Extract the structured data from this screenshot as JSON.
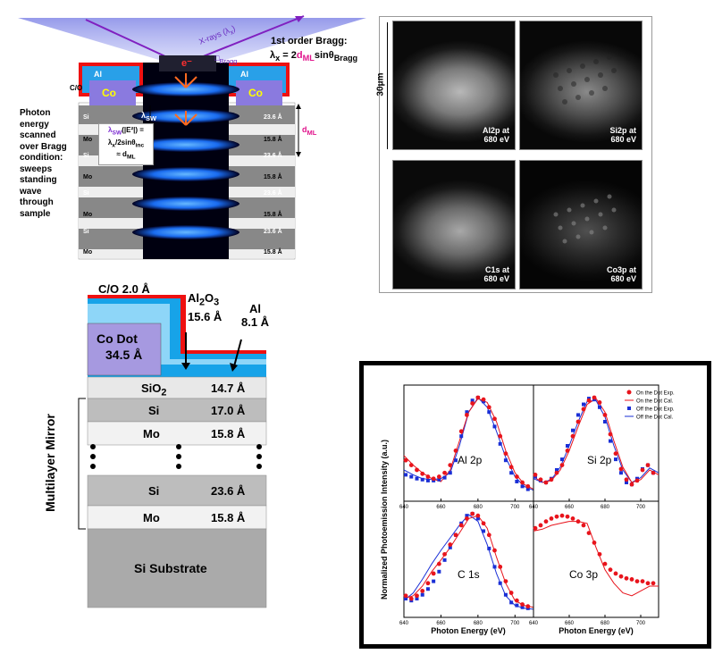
{
  "panel_a": {
    "xray_label": "X-rays (λ",
    "xray_label_sub": "x",
    "xray_label_close": ")",
    "theta_label": "Bragg",
    "bragg_title": "1st order Bragg:",
    "bragg_eq_lhs": "λ",
    "bragg_eq_lhs_sub": "x",
    "bragg_eq_mid": " = 2",
    "bragg_eq_d": "d",
    "bragg_eq_d_sub": "ML",
    "bragg_eq_rhs": "sinθ",
    "bragg_eq_rhs_sub": "Bragg",
    "co_left": "Co",
    "co_right": "Co",
    "al_left": "Al",
    "al_right": "Al",
    "co_label": "C/O",
    "e_label": "e⁻",
    "lambda_sw": "λ",
    "lambda_sw_sub": "SW",
    "left_text": "Photon energy scanned over Bragg condition: sweeps standing wave through sample",
    "box_line1": "λ",
    "box_line1_sub": "SW",
    "box_line1_rest": "(|E²|) =",
    "box_line2": "λ",
    "box_line2_sub": "x",
    "box_line2_rest": "/2sinθ",
    "box_line2_sub2": "inc",
    "box_line3": "≈ d",
    "box_line3_sub": "ML",
    "d_ml": "d",
    "d_ml_sub": "ML",
    "layers": [
      {
        "name": "Si",
        "thick": "23.6 Å"
      },
      {
        "name": "Mo",
        "thick": "15.8 Å"
      },
      {
        "name": "Si",
        "thick": "23.6 Å"
      },
      {
        "name": "Mo",
        "thick": "15.8 Å"
      },
      {
        "name": "Si",
        "thick": "23.6 Å"
      },
      {
        "name": "Mo",
        "thick": "15.8 Å"
      },
      {
        "name": "Si",
        "thick": "23.6 Å"
      },
      {
        "name": "Mo",
        "thick": "15.8 Å"
      }
    ]
  },
  "panel_b": {
    "scale": "30μm",
    "images": [
      {
        "line1": "Al2p at",
        "line2": "680 eV"
      },
      {
        "line1": "Si2p at",
        "line2": "680 eV"
      },
      {
        "line1": "C1s at",
        "line2": "680 eV"
      },
      {
        "line1": "Co3p at",
        "line2": "680 eV"
      }
    ]
  },
  "panel_c": {
    "co_label": "C/O  2.0 Å",
    "al2o3_label": "Al",
    "al2o3_sub1": "2",
    "al2o3_mid": "O",
    "al2o3_sub2": "3",
    "al2o3_thick": "15.6 Å",
    "al_label": "Al",
    "al_thick": "8.1 Å",
    "co_dot": "Co Dot",
    "co_dot_thick": "34.5 Å",
    "mirror_label": "Multilayer Mirror",
    "substrate": "Si Substrate",
    "rows": [
      {
        "name": "SiO",
        "sub": "2",
        "thick": "14.7 Å"
      },
      {
        "name": "Si",
        "sub": "",
        "thick": "17.0 Å"
      },
      {
        "name": "Mo",
        "sub": "",
        "thick": "15.8 Å"
      },
      {
        "name": "Si",
        "sub": "",
        "thick": "23.6 Å"
      },
      {
        "name": "Mo",
        "sub": "",
        "thick": "15.8 Å"
      }
    ]
  },
  "chart_data": {
    "type": "scatter",
    "ylabel": "Normalized Photoemission Intensity (a.u.)",
    "xlabel": "Photon Energy (eV)",
    "xlim": [
      640,
      710
    ],
    "xticks": [
      640,
      660,
      680,
      700
    ],
    "legend": [
      "On the Dot Exp.",
      "On the Dot Cal.",
      "Off the Dot Exp.",
      "Off the Dot Cal."
    ],
    "legend_position": "top-right of Si 2p panel",
    "colors": {
      "on": "#e8141c",
      "off": "#1a2fd6"
    },
    "panels": [
      {
        "name": "Al 2p",
        "on_exp": [
          [
            641,
            0.35
          ],
          [
            644,
            0.3
          ],
          [
            647,
            0.25
          ],
          [
            650,
            0.21
          ],
          [
            653,
            0.18
          ],
          [
            656,
            0.16
          ],
          [
            659,
            0.18
          ],
          [
            662,
            0.22
          ],
          [
            665,
            0.3
          ],
          [
            668,
            0.45
          ],
          [
            671,
            0.65
          ],
          [
            674,
            0.82
          ],
          [
            677,
            0.94
          ],
          [
            680,
            1.0
          ],
          [
            683,
            0.98
          ],
          [
            686,
            0.9
          ],
          [
            689,
            0.78
          ],
          [
            692,
            0.6
          ],
          [
            695,
            0.42
          ],
          [
            698,
            0.28
          ],
          [
            701,
            0.18
          ],
          [
            704,
            0.12
          ],
          [
            707,
            0.08
          ]
        ],
        "on_cal": [
          [
            640,
            0.4
          ],
          [
            645,
            0.3
          ],
          [
            650,
            0.22
          ],
          [
            655,
            0.16
          ],
          [
            660,
            0.13
          ],
          [
            665,
            0.25
          ],
          [
            670,
            0.55
          ],
          [
            675,
            0.85
          ],
          [
            680,
            0.99
          ],
          [
            685,
            0.95
          ],
          [
            690,
            0.75
          ],
          [
            695,
            0.45
          ],
          [
            700,
            0.22
          ],
          [
            705,
            0.1
          ],
          [
            710,
            0.05
          ]
        ],
        "off_exp": [
          [
            641,
            0.2
          ],
          [
            644,
            0.18
          ],
          [
            647,
            0.16
          ],
          [
            650,
            0.15
          ],
          [
            653,
            0.14
          ],
          [
            656,
            0.14
          ],
          [
            659,
            0.15
          ],
          [
            662,
            0.17
          ],
          [
            665,
            0.22
          ],
          [
            668,
            0.35
          ],
          [
            671,
            0.6
          ],
          [
            674,
            0.85
          ],
          [
            677,
            0.97
          ],
          [
            680,
            1.0
          ],
          [
            683,
            0.96
          ],
          [
            686,
            0.85
          ],
          [
            689,
            0.7
          ],
          [
            692,
            0.52
          ],
          [
            695,
            0.35
          ],
          [
            698,
            0.22
          ],
          [
            701,
            0.13
          ],
          [
            704,
            0.08
          ],
          [
            707,
            0.05
          ]
        ],
        "off_cal": [
          [
            640,
            0.25
          ],
          [
            645,
            0.2
          ],
          [
            650,
            0.16
          ],
          [
            655,
            0.15
          ],
          [
            660,
            0.16
          ],
          [
            665,
            0.22
          ],
          [
            670,
            0.5
          ],
          [
            675,
            0.85
          ],
          [
            680,
            1.0
          ],
          [
            685,
            0.9
          ],
          [
            690,
            0.65
          ],
          [
            695,
            0.38
          ],
          [
            700,
            0.18
          ],
          [
            705,
            0.08
          ],
          [
            710,
            0.04
          ]
        ]
      },
      {
        "name": "Si 2p",
        "on_exp": [
          [
            641,
            0.2
          ],
          [
            644,
            0.15
          ],
          [
            647,
            0.12
          ],
          [
            650,
            0.15
          ],
          [
            653,
            0.22
          ],
          [
            656,
            0.3
          ],
          [
            659,
            0.45
          ],
          [
            662,
            0.6
          ],
          [
            665,
            0.75
          ],
          [
            668,
            0.88
          ],
          [
            671,
            0.97
          ],
          [
            674,
            1.0
          ],
          [
            677,
            0.95
          ],
          [
            680,
            0.82
          ],
          [
            683,
            0.62
          ],
          [
            686,
            0.42
          ],
          [
            689,
            0.26
          ],
          [
            692,
            0.15
          ],
          [
            695,
            0.1
          ],
          [
            698,
            0.14
          ],
          [
            701,
            0.25
          ],
          [
            704,
            0.3
          ],
          [
            707,
            0.22
          ]
        ],
        "on_cal": [
          [
            640,
            0.18
          ],
          [
            645,
            0.12
          ],
          [
            650,
            0.14
          ],
          [
            655,
            0.25
          ],
          [
            660,
            0.45
          ],
          [
            665,
            0.7
          ],
          [
            670,
            0.93
          ],
          [
            675,
            0.99
          ],
          [
            680,
            0.85
          ],
          [
            685,
            0.55
          ],
          [
            690,
            0.28
          ],
          [
            695,
            0.12
          ],
          [
            700,
            0.15
          ],
          [
            705,
            0.25
          ],
          [
            710,
            0.2
          ]
        ],
        "off_exp": [
          [
            641,
            0.18
          ],
          [
            644,
            0.14
          ],
          [
            647,
            0.12
          ],
          [
            650,
            0.16
          ],
          [
            653,
            0.25
          ],
          [
            656,
            0.36
          ],
          [
            659,
            0.5
          ],
          [
            662,
            0.66
          ],
          [
            665,
            0.82
          ],
          [
            668,
            0.93
          ],
          [
            671,
            0.99
          ],
          [
            674,
            0.98
          ],
          [
            677,
            0.9
          ],
          [
            680,
            0.75
          ],
          [
            683,
            0.55
          ],
          [
            686,
            0.36
          ],
          [
            689,
            0.22
          ],
          [
            692,
            0.12
          ],
          [
            695,
            0.1
          ],
          [
            698,
            0.16
          ],
          [
            701,
            0.26
          ],
          [
            704,
            0.3
          ],
          [
            707,
            0.22
          ]
        ],
        "off_cal": [
          [
            640,
            0.16
          ],
          [
            645,
            0.12
          ],
          [
            650,
            0.15
          ],
          [
            655,
            0.28
          ],
          [
            660,
            0.5
          ],
          [
            665,
            0.75
          ],
          [
            670,
            0.96
          ],
          [
            675,
            0.97
          ],
          [
            680,
            0.8
          ],
          [
            685,
            0.5
          ],
          [
            690,
            0.25
          ],
          [
            695,
            0.12
          ],
          [
            700,
            0.17
          ],
          [
            705,
            0.27
          ],
          [
            710,
            0.22
          ]
        ]
      },
      {
        "name": "C 1s",
        "on_exp": [
          [
            641,
            0.15
          ],
          [
            644,
            0.12
          ],
          [
            647,
            0.15
          ],
          [
            650,
            0.2
          ],
          [
            653,
            0.28
          ],
          [
            656,
            0.38
          ],
          [
            659,
            0.48
          ],
          [
            662,
            0.58
          ],
          [
            665,
            0.68
          ],
          [
            668,
            0.78
          ],
          [
            671,
            0.88
          ],
          [
            674,
            0.95
          ],
          [
            677,
            1.0
          ],
          [
            680,
            0.98
          ],
          [
            683,
            0.9
          ],
          [
            686,
            0.78
          ],
          [
            689,
            0.62
          ],
          [
            692,
            0.45
          ],
          [
            695,
            0.3
          ],
          [
            698,
            0.18
          ],
          [
            701,
            0.1
          ],
          [
            704,
            0.06
          ],
          [
            707,
            0.04
          ]
        ],
        "on_cal": [
          [
            640,
            0.12
          ],
          [
            645,
            0.15
          ],
          [
            650,
            0.25
          ],
          [
            655,
            0.4
          ],
          [
            660,
            0.52
          ],
          [
            665,
            0.65
          ],
          [
            670,
            0.8
          ],
          [
            675,
            0.95
          ],
          [
            680,
            0.98
          ],
          [
            685,
            0.85
          ],
          [
            690,
            0.55
          ],
          [
            695,
            0.28
          ],
          [
            700,
            0.1
          ],
          [
            705,
            0.05
          ],
          [
            710,
            0.03
          ]
        ],
        "off_exp": [
          [
            641,
            0.12
          ],
          [
            644,
            0.1
          ],
          [
            647,
            0.12
          ],
          [
            650,
            0.16
          ],
          [
            653,
            0.22
          ],
          [
            656,
            0.3
          ],
          [
            659,
            0.4
          ],
          [
            662,
            0.52
          ],
          [
            665,
            0.65
          ],
          [
            668,
            0.78
          ],
          [
            671,
            0.9
          ],
          [
            674,
            0.98
          ],
          [
            677,
            1.0
          ],
          [
            680,
            0.95
          ],
          [
            683,
            0.82
          ],
          [
            686,
            0.64
          ],
          [
            689,
            0.45
          ],
          [
            692,
            0.28
          ],
          [
            695,
            0.16
          ],
          [
            698,
            0.08
          ],
          [
            701,
            0.05
          ],
          [
            704,
            0.03
          ],
          [
            707,
            0.02
          ]
        ],
        "off_cal": [
          [
            640,
            0.1
          ],
          [
            645,
            0.18
          ],
          [
            650,
            0.32
          ],
          [
            655,
            0.48
          ],
          [
            660,
            0.62
          ],
          [
            665,
            0.75
          ],
          [
            670,
            0.88
          ],
          [
            675,
            0.99
          ],
          [
            680,
            0.92
          ],
          [
            685,
            0.68
          ],
          [
            690,
            0.38
          ],
          [
            695,
            0.15
          ],
          [
            700,
            0.05
          ],
          [
            705,
            0.02
          ],
          [
            710,
            0.01
          ]
        ]
      },
      {
        "name": "Co 3p",
        "on_exp": [
          [
            641,
            0.85
          ],
          [
            644,
            0.88
          ],
          [
            647,
            0.92
          ],
          [
            650,
            0.95
          ],
          [
            653,
            0.97
          ],
          [
            656,
            0.98
          ],
          [
            659,
            0.97
          ],
          [
            662,
            0.95
          ],
          [
            665,
            0.92
          ],
          [
            668,
            0.88
          ],
          [
            671,
            0.8
          ],
          [
            674,
            0.7
          ],
          [
            677,
            0.58
          ],
          [
            680,
            0.48
          ],
          [
            683,
            0.42
          ],
          [
            686,
            0.38
          ],
          [
            689,
            0.35
          ],
          [
            692,
            0.33
          ],
          [
            695,
            0.32
          ],
          [
            698,
            0.3
          ],
          [
            701,
            0.3
          ],
          [
            704,
            0.28
          ],
          [
            707,
            0.28
          ]
        ],
        "on_cal": [
          [
            640,
            0.82
          ],
          [
            645,
            0.84
          ],
          [
            650,
            0.88
          ],
          [
            655,
            0.9
          ],
          [
            660,
            0.92
          ],
          [
            665,
            0.92
          ],
          [
            670,
            0.9
          ],
          [
            675,
            0.65
          ],
          [
            680,
            0.42
          ],
          [
            685,
            0.28
          ],
          [
            690,
            0.18
          ],
          [
            695,
            0.15
          ],
          [
            700,
            0.2
          ],
          [
            705,
            0.25
          ],
          [
            710,
            0.25
          ]
        ]
      }
    ]
  }
}
